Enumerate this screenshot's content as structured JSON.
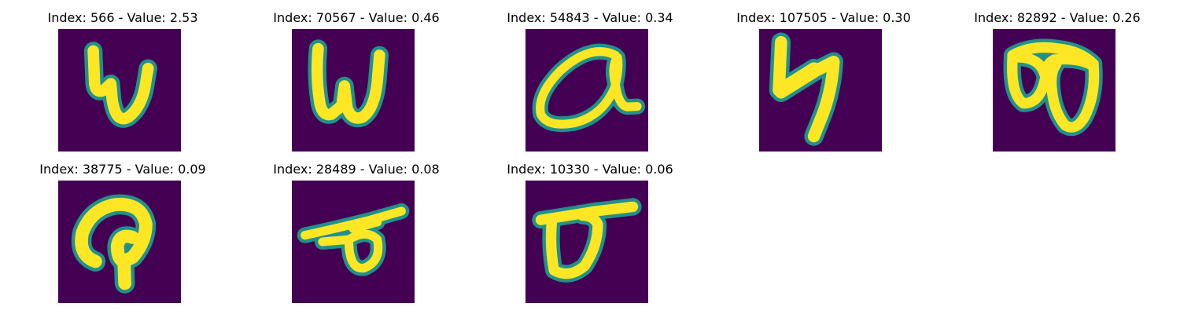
{
  "colors": {
    "background": "#440154",
    "stroke_edge": "#21918c",
    "stroke_core": "#fde725"
  },
  "items": [
    {
      "title": "Index: 566 - Value: 2.53",
      "glyph": "handwritten-w"
    },
    {
      "title": "Index: 70567 - Value: 0.46",
      "glyph": "handwritten-w"
    },
    {
      "title": "Index: 54843 - Value: 0.34",
      "glyph": "handwritten-q-loop"
    },
    {
      "title": "Index: 107505 - Value: 0.30",
      "glyph": "handwritten-4"
    },
    {
      "title": "Index: 82892 - Value: 0.26",
      "glyph": "handwritten-b-sideways"
    },
    {
      "title": "Index: 38775 - Value: 0.09",
      "glyph": "handwritten-p"
    },
    {
      "title": "Index: 28489 - Value: 0.08",
      "glyph": "handwritten-loop"
    },
    {
      "title": "Index: 10330 - Value: 0.06",
      "glyph": "handwritten-loop"
    }
  ]
}
